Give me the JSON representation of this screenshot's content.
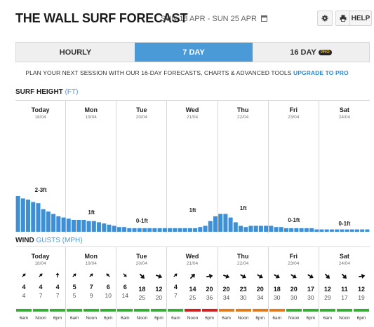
{
  "header": {
    "title": "THE WALL SURF FORECAST",
    "dates": "SUN 18 APR - SUN 25 APR",
    "help_label": "HELP"
  },
  "tabs": [
    {
      "label": "HOURLY",
      "active": false
    },
    {
      "label": "7 DAY",
      "active": true
    },
    {
      "label": "16 DAY",
      "active": false,
      "badge": "PRO"
    }
  ],
  "promo": {
    "text": "PLAN YOUR NEXT SESSION WITH OUR 16-DAY FORECASTS, CHARTS & ADVANCED TOOLS",
    "link": "UPGRADE TO PRO"
  },
  "surf": {
    "title": "SURF HEIGHT",
    "unit": "(FT)",
    "bar_color": "#3d8fd6",
    "wave_heights_ft": [
      3.0,
      2.8,
      2.7,
      2.5,
      2.4,
      1.9,
      1.7,
      1.5,
      1.3,
      1.2,
      1.1,
      1.0,
      1.0,
      1.0,
      0.9,
      0.9,
      0.8,
      0.7,
      0.6,
      0.5,
      0.4,
      0.4,
      0.3,
      0.3,
      0.3,
      0.3,
      0.3,
      0.3,
      0.3,
      0.3,
      0.3,
      0.3,
      0.3,
      0.3,
      0.3,
      0.3,
      0.4,
      0.5,
      0.9,
      1.3,
      1.5,
      1.5,
      1.2,
      0.8,
      0.5,
      0.4,
      0.5,
      0.5,
      0.5,
      0.5,
      0.5,
      0.4,
      0.4,
      0.3,
      0.3,
      0.3,
      0.3,
      0.3,
      0.3,
      0.2,
      0.2,
      0.2,
      0.2,
      0.2,
      0.2,
      0.2,
      0.2,
      0.2,
      0.2,
      0.2
    ],
    "labels": [
      {
        "day": 0,
        "text": "2-3ft"
      },
      {
        "day": 1,
        "text": "1ft"
      },
      {
        "day": 2,
        "text": "0-1ft"
      },
      {
        "day": 3,
        "text": "1ft"
      },
      {
        "day": 4,
        "text": "1ft"
      },
      {
        "day": 5,
        "text": "0-1ft"
      },
      {
        "day": 6,
        "text": "0-1ft"
      }
    ]
  },
  "days": [
    {
      "name": "Today",
      "date": "18/04"
    },
    {
      "name": "Mon",
      "date": "19/04"
    },
    {
      "name": "Tue",
      "date": "20/04"
    },
    {
      "name": "Wed",
      "date": "21/04"
    },
    {
      "name": "Thu",
      "date": "22/04"
    },
    {
      "name": "Fri",
      "date": "23/04"
    },
    {
      "name": "Sat",
      "date": "24/04"
    }
  ],
  "wind": {
    "title": "WIND",
    "subtitle": "GUSTS (MPH)",
    "times": [
      "6am",
      "Noon",
      "6pm"
    ],
    "colors": {
      "green": "#3aab3a",
      "orange": "#e07b22",
      "red": "#cc2222"
    },
    "data": [
      {
        "speed": "4",
        "gust": "4",
        "rot": -45,
        "color": "green"
      },
      {
        "speed": "4",
        "gust": "7",
        "rot": -45,
        "color": "green"
      },
      {
        "speed": "4",
        "gust": "7",
        "rot": -90,
        "color": "green"
      },
      {
        "speed": "5",
        "gust": "5",
        "rot": -45,
        "color": "green"
      },
      {
        "speed": "7",
        "gust": "9",
        "rot": -45,
        "color": "green"
      },
      {
        "speed": "6",
        "gust": "10",
        "rot": -135,
        "color": "green"
      },
      {
        "speed": "6",
        "gust": "14",
        "rot": 45,
        "color": "green"
      },
      {
        "speed": "18",
        "gust": "25",
        "rot": 45,
        "color": "green"
      },
      {
        "speed": "12",
        "gust": "20",
        "rot": 20,
        "color": "green"
      },
      {
        "speed": "4",
        "gust": "7",
        "rot": -45,
        "color": "green"
      },
      {
        "speed": "14",
        "gust": "25",
        "rot": -45,
        "color": "red"
      },
      {
        "speed": "20",
        "gust": "36",
        "rot": -10,
        "color": "red"
      },
      {
        "speed": "20",
        "gust": "34",
        "rot": 20,
        "color": "orange"
      },
      {
        "speed": "23",
        "gust": "30",
        "rot": 30,
        "color": "orange"
      },
      {
        "speed": "20",
        "gust": "34",
        "rot": 30,
        "color": "orange"
      },
      {
        "speed": "18",
        "gust": "30",
        "rot": 30,
        "color": "orange"
      },
      {
        "speed": "20",
        "gust": "30",
        "rot": 30,
        "color": "green"
      },
      {
        "speed": "17",
        "gust": "30",
        "rot": 30,
        "color": "green"
      },
      {
        "speed": "12",
        "gust": "29",
        "rot": 45,
        "color": "green"
      },
      {
        "speed": "11",
        "gust": "17",
        "rot": 45,
        "color": "green"
      },
      {
        "speed": "12",
        "gust": "19",
        "rot": -10,
        "color": "green"
      }
    ]
  }
}
